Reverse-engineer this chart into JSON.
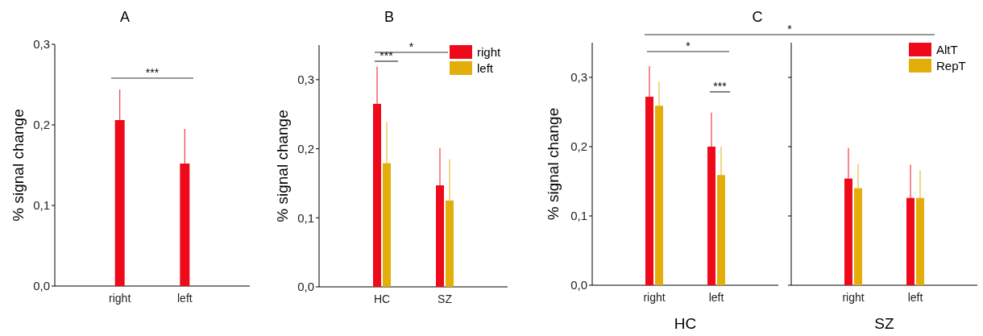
{
  "chart_data": [
    {
      "type": "bar",
      "title": "A",
      "ylabel": "% signal change",
      "categories": [
        "right",
        "left"
      ],
      "values": [
        0.206,
        0.152
      ],
      "color": "#ee0a1a",
      "errors": [
        [
          0.206,
          0.244
        ],
        [
          0.152,
          0.195
        ]
      ],
      "ylim": [
        0,
        0.3
      ],
      "yticks": [
        {
          "value": 0,
          "label": "0,0"
        },
        {
          "value": 0.1,
          "label": "0,1"
        },
        {
          "value": 0.2,
          "label": "0,2"
        },
        {
          "value": 0.3,
          "label": "0,3"
        }
      ],
      "annotations": [
        "***"
      ]
    },
    {
      "type": "bar",
      "title": "B",
      "ylabel": "% signal change",
      "categories": [
        "HC",
        "SZ"
      ],
      "legend": "top right",
      "series": [
        {
          "name": "right",
          "color": "#ee0a1a",
          "values": [
            0.265,
            0.147
          ],
          "errors": [
            [
              0.265,
              0.319
            ],
            [
              0.147,
              0.201
            ]
          ]
        },
        {
          "name": "left",
          "color": "#e3ad0a",
          "values": [
            0.179,
            0.125
          ],
          "errors": [
            [
              0.179,
              0.239
            ],
            [
              0.125,
              0.185
            ]
          ]
        }
      ],
      "ylim": [
        0,
        0.35
      ],
      "yticks": [
        {
          "value": 0,
          "label": "0,0"
        },
        {
          "value": 0.1,
          "label": "0,1"
        },
        {
          "value": 0.2,
          "label": "0,2"
        },
        {
          "value": 0.3,
          "label": "0,3"
        }
      ],
      "annotations": [
        "***",
        "*"
      ]
    },
    {
      "type": "bar",
      "title": "C",
      "ylabel": "% signal change",
      "xlabel": "HC",
      "categories": [
        "right",
        "left"
      ],
      "legend": "top right",
      "series": [
        {
          "name": "AltT",
          "color": "#ee0a1a",
          "values": [
            0.272,
            0.2
          ],
          "errors": [
            [
              0.272,
              0.316
            ],
            [
              0.2,
              0.249
            ]
          ]
        },
        {
          "name": "RepT",
          "color": "#e3ad0a",
          "values": [
            0.259,
            0.159
          ],
          "errors": [
            [
              0.259,
              0.294
            ],
            [
              0.159,
              0.2
            ]
          ]
        }
      ],
      "ylim": [
        0,
        0.35
      ],
      "yticks": [
        {
          "value": 0,
          "label": "0,0"
        },
        {
          "value": 0.1,
          "label": "0,1"
        },
        {
          "value": 0.2,
          "label": "0,2"
        },
        {
          "value": 0.3,
          "label": "0,3"
        }
      ],
      "annotations": [
        "*",
        "***",
        "*"
      ]
    },
    {
      "type": "bar",
      "xlabel": "SZ",
      "categories": [
        "right",
        "left"
      ],
      "tick_labels": "x",
      "series": [
        {
          "color": "#ee0a1a",
          "values": [
            0.154,
            0.126
          ],
          "errors": [
            [
              0.154,
              0.198
            ],
            [
              0.126,
              0.174
            ]
          ]
        },
        {
          "color": "#e3ad0a",
          "values": [
            0.14,
            0.126
          ],
          "errors": [
            [
              0.14,
              0.175
            ],
            [
              0.126,
              0.166
            ]
          ]
        }
      ],
      "ylim": [
        0,
        0.35
      ],
      "yticks": [
        {
          "value": 0,
          "label": null
        },
        {
          "value": 0.1,
          "label": null
        },
        {
          "value": 0.2,
          "label": null
        },
        {
          "value": 0.3,
          "label": null
        }
      ]
    }
  ]
}
